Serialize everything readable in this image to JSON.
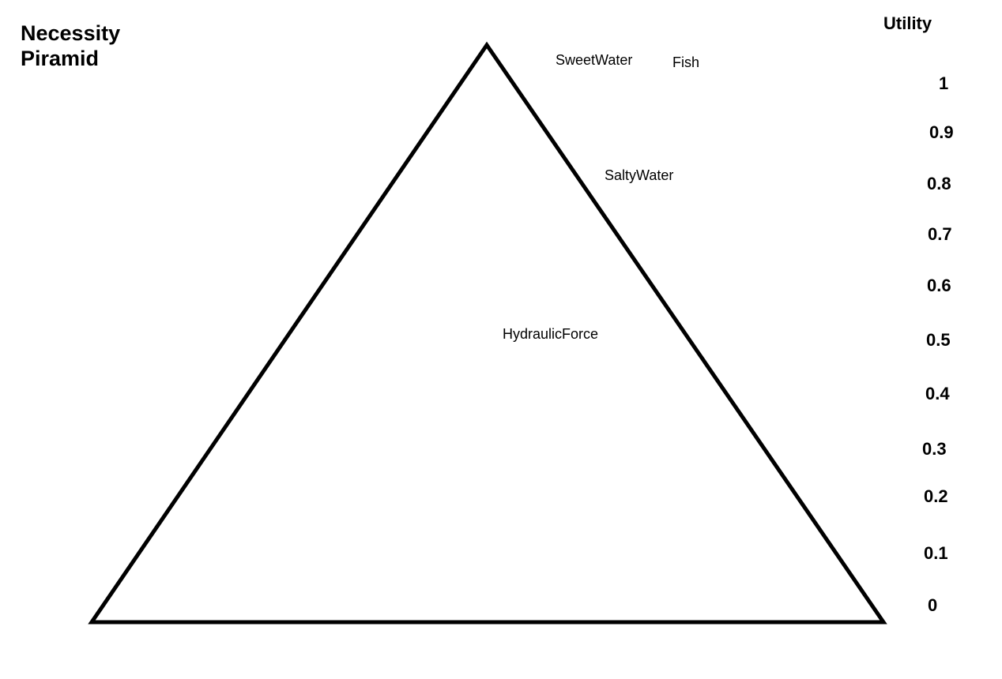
{
  "title": {
    "line1": "Necessity",
    "line2": "Piramid"
  },
  "axis": {
    "title": "Utility",
    "ticks": [
      "1",
      "0.9",
      "0.8",
      "0.7",
      "0.6",
      "0.5",
      "0.4",
      "0.3",
      "0.2",
      "0.1",
      "0"
    ]
  },
  "items": [
    {
      "label": "SweetWater"
    },
    {
      "label": "Fish"
    },
    {
      "label": "SaltyWater"
    },
    {
      "label": "HydraulicForce"
    }
  ]
}
